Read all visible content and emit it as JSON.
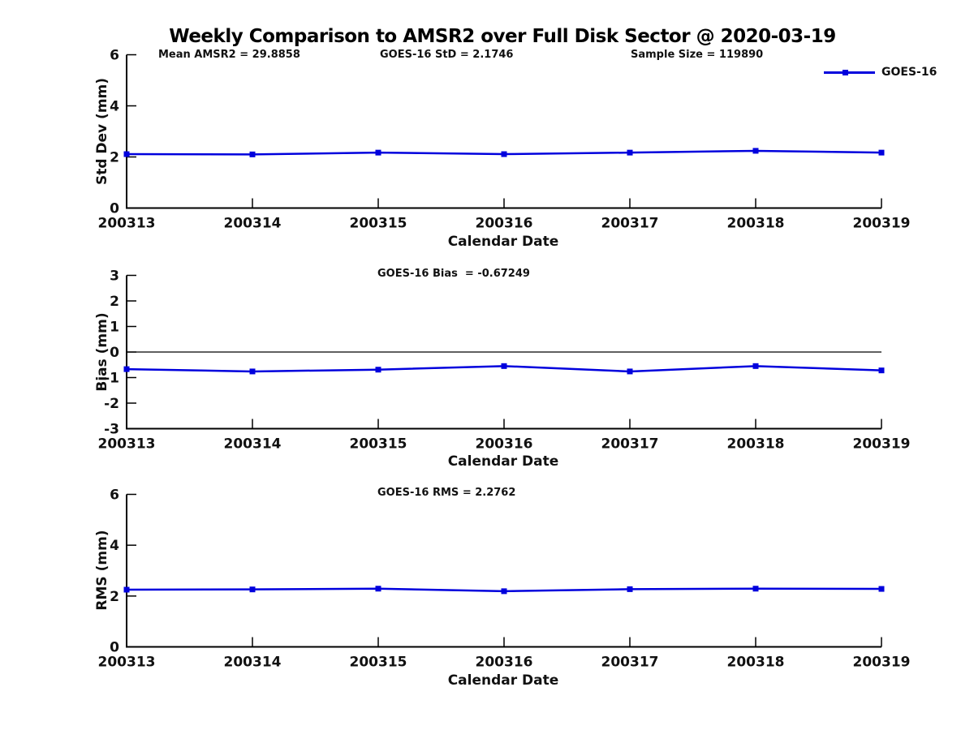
{
  "page_title": "Weekly Comparison to AMSR2 over Full Disk Sector @ 2020-03-19",
  "header_stats": {
    "mean_amsr2": "Mean AMSR2 = 29.8858",
    "goes16_std": "GOES-16 StD = 2.1746",
    "sample_size": "Sample Size = 119890"
  },
  "legend": {
    "label": "GOES-16",
    "color": "#0000dd",
    "marker": "square",
    "position": "top-right"
  },
  "chart_data": [
    {
      "type": "line",
      "title": "",
      "ylabel": "Std Dev (mm)",
      "xlabel": "Calendar Date",
      "categories": [
        "200313",
        "200314",
        "200315",
        "200316",
        "200317",
        "200318",
        "200319"
      ],
      "series": [
        {
          "name": "GOES-16",
          "color": "#0000dd",
          "marker": "square",
          "values": [
            2.11,
            2.1,
            2.17,
            2.11,
            2.17,
            2.24,
            2.17
          ]
        }
      ],
      "ylim": [
        0,
        6
      ],
      "yticks": [
        0,
        2,
        4,
        6
      ],
      "grid": false,
      "zero_line": false,
      "legend_position": "top-right"
    },
    {
      "type": "line",
      "title": "GOES-16 Bias  = -0.67249",
      "ylabel": "Bias (mm)",
      "xlabel": "Calendar Date",
      "categories": [
        "200313",
        "200314",
        "200315",
        "200316",
        "200317",
        "200318",
        "200319"
      ],
      "series": [
        {
          "name": "GOES-16",
          "color": "#0000dd",
          "marker": "square",
          "values": [
            -0.67,
            -0.76,
            -0.69,
            -0.55,
            -0.76,
            -0.55,
            -0.72
          ]
        }
      ],
      "ylim": [
        -3,
        3
      ],
      "yticks": [
        -3,
        -2,
        -1,
        0,
        1,
        2,
        3
      ],
      "grid": false,
      "zero_line": true,
      "legend_position": "none"
    },
    {
      "type": "line",
      "title": "GOES-16 RMS = 2.2762",
      "ylabel": "RMS (mm)",
      "xlabel": "Calendar Date",
      "categories": [
        "200313",
        "200314",
        "200315",
        "200316",
        "200317",
        "200318",
        "200319"
      ],
      "series": [
        {
          "name": "GOES-16",
          "color": "#0000dd",
          "marker": "square",
          "values": [
            2.25,
            2.26,
            2.29,
            2.19,
            2.27,
            2.29,
            2.28
          ]
        }
      ],
      "ylim": [
        0,
        6
      ],
      "yticks": [
        0,
        2,
        4,
        6
      ],
      "grid": false,
      "zero_line": false,
      "legend_position": "none"
    }
  ]
}
